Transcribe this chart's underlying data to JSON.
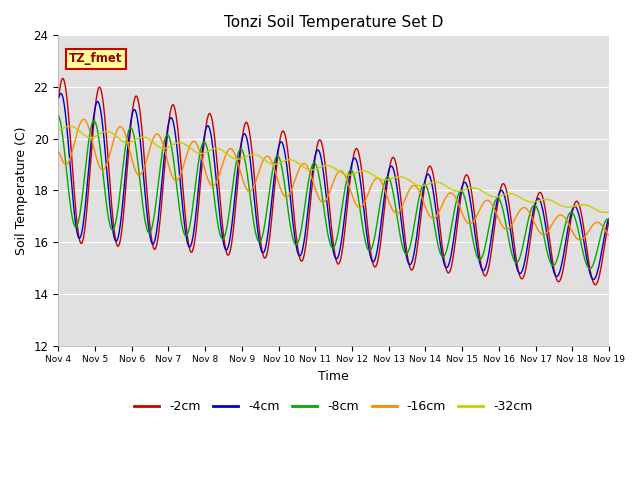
{
  "title": "Tonzi Soil Temperature Set D",
  "xlabel": "Time",
  "ylabel": "Soil Temperature (C)",
  "ylim": [
    12,
    24
  ],
  "xlim": [
    0,
    15
  ],
  "x_tick_labels": [
    "Nov 4",
    "Nov 5",
    "Nov 6",
    "Nov 7",
    "Nov 8",
    "Nov 9",
    "Nov 10",
    "Nov 11",
    "Nov 12",
    "Nov 13",
    "Nov 14",
    "Nov 15",
    "Nov 16",
    "Nov 17",
    "Nov 18",
    "Nov 19"
  ],
  "legend_labels": [
    "-2cm",
    "-4cm",
    "-8cm",
    "-16cm",
    "-32cm"
  ],
  "legend_colors": [
    "#cc0000",
    "#0000cc",
    "#00aa00",
    "#ff8800",
    "#cccc00"
  ],
  "label_box_text": "TZ_fmet",
  "label_box_bg": "#ffff99",
  "label_box_edge": "#cc0000",
  "bg_color": "#e0e0e0",
  "fig_bg": "#ffffff",
  "n_points": 1500
}
